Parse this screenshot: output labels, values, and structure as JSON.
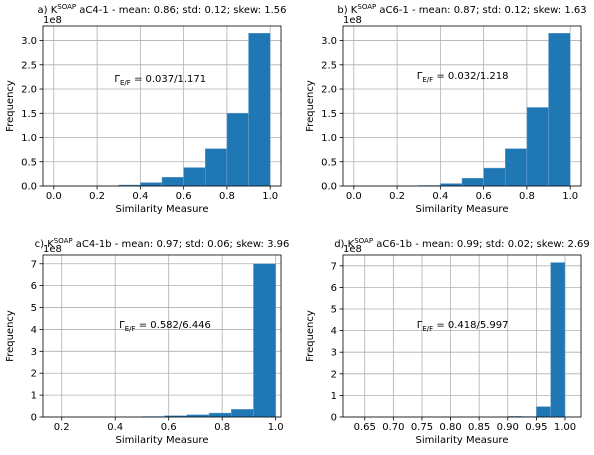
{
  "chart_data": [
    {
      "type": "histogram",
      "title": [
        "a) K",
        "SOAP",
        " aC4-1 - mean: 0.86; std: 0.12; skew: 1.56"
      ],
      "annotation": [
        "Γ",
        "E/F",
        " = 0.037/1.171"
      ],
      "xlabel": "Similarity Measure",
      "ylabel": "Frequency",
      "y_offset_label": "1e8",
      "bins": [
        0.0,
        0.1,
        0.2,
        0.3,
        0.4,
        0.5,
        0.6,
        0.7,
        0.8,
        0.9,
        1.0
      ],
      "counts": [
        0,
        0,
        0,
        0.02,
        0.07,
        0.18,
        0.38,
        0.77,
        1.5,
        3.15
      ],
      "color": "#1f77b4",
      "xlim": [
        -0.05,
        1.05
      ],
      "ylim": [
        0,
        3.3
      ],
      "xticks": [
        {
          "value": 0,
          "label": "0.0"
        },
        0.2,
        0.4,
        0.6,
        0.8,
        {
          "value": 1,
          "label": "1.0"
        }
      ],
      "yticks": [
        {
          "value": 0,
          "label": "0.0"
        },
        0.5,
        {
          "value": 1,
          "label": "1.0"
        },
        1.5,
        {
          "value": 2,
          "label": "2.0"
        },
        2.5,
        {
          "value": 3,
          "label": "3.0"
        }
      ],
      "grid": true
    },
    {
      "type": "histogram",
      "title": [
        "b) K",
        "SOAP",
        " aC6-1 - mean: 0.87; std: 0.12; skew: 1.63"
      ],
      "annotation": [
        "Γ",
        "E/F",
        " = 0.032/1.218"
      ],
      "xlabel": "Similarity Measure",
      "ylabel": "Frequency",
      "y_offset_label": "1e8",
      "bins": [
        0.0,
        0.1,
        0.2,
        0.3,
        0.4,
        0.5,
        0.6,
        0.7,
        0.8,
        0.9,
        1.0
      ],
      "counts": [
        0,
        0,
        0,
        0.01,
        0.05,
        0.16,
        0.37,
        0.77,
        1.62,
        3.15
      ],
      "color": "#1f77b4",
      "xlim": [
        -0.05,
        1.05
      ],
      "ylim": [
        0,
        3.3
      ],
      "xticks": [
        {
          "value": 0,
          "label": "0.0"
        },
        0.2,
        0.4,
        0.6,
        0.8,
        {
          "value": 1,
          "label": "1.0"
        }
      ],
      "yticks": [
        {
          "value": 0,
          "label": "0.0"
        },
        0.5,
        {
          "value": 1,
          "label": "1.0"
        },
        1.5,
        {
          "value": 2,
          "label": "2.0"
        },
        2.5,
        {
          "value": 3,
          "label": "3.0"
        }
      ],
      "grid": true
    },
    {
      "type": "histogram",
      "title": [
        "c) K",
        "SOAP",
        " aC4-1b - mean: 0.97; std: 0.06; skew: 3.96"
      ],
      "annotation": [
        "Γ",
        "E/F",
        " = 0.582/6.446"
      ],
      "xlabel": "Similarity Measure",
      "ylabel": "Frequency",
      "y_offset_label": "1e8",
      "bins": [
        0.17,
        0.253,
        0.336,
        0.419,
        0.502,
        0.585,
        0.668,
        0.751,
        0.834,
        0.917,
        1.0
      ],
      "counts": [
        0,
        0,
        0,
        0,
        0.02,
        0.06,
        0.1,
        0.18,
        0.35,
        7.0
      ],
      "color": "#1f77b4",
      "xlim": [
        0.13,
        1.02
      ],
      "ylim": [
        0,
        7.4
      ],
      "xticks": [
        0.2,
        0.4,
        0.6,
        0.8,
        {
          "value": 1,
          "label": "1.0"
        }
      ],
      "yticks": [
        0,
        1,
        2,
        3,
        4,
        5,
        6,
        7
      ],
      "grid": true
    },
    {
      "type": "histogram",
      "title": [
        "d) K",
        "SOAP",
        " aC6-1b - mean: 0.99; std: 0.02; skew: 2.69"
      ],
      "annotation": [
        "Γ",
        "E/F",
        " = 0.418/5.997"
      ],
      "xlabel": "Similarity Measure",
      "ylabel": "Frequency",
      "y_offset_label": "1e8",
      "bins": [
        0.65,
        0.675,
        0.7,
        0.725,
        0.75,
        0.775,
        0.8,
        0.825,
        0.85,
        0.875,
        0.9,
        0.925,
        0.95,
        0.975,
        1.0
      ],
      "counts": [
        0,
        0,
        0,
        0,
        0,
        0,
        0,
        0,
        0,
        0,
        0.03,
        0.02,
        0.48,
        7.15
      ],
      "color": "#1f77b4",
      "xlim": [
        0.612,
        1.028
      ],
      "ylim": [
        0,
        7.5
      ],
      "xticks": [
        0.65,
        {
          "value": 0.7,
          "label": "0.70"
        },
        0.75,
        {
          "value": 0.8,
          "label": "0.80"
        },
        0.85,
        {
          "value": 0.9,
          "label": "0.90"
        },
        0.95,
        {
          "value": 1,
          "label": "1.00"
        }
      ],
      "yticks": [
        0,
        1,
        2,
        3,
        4,
        5,
        6,
        7
      ],
      "grid": true
    }
  ]
}
